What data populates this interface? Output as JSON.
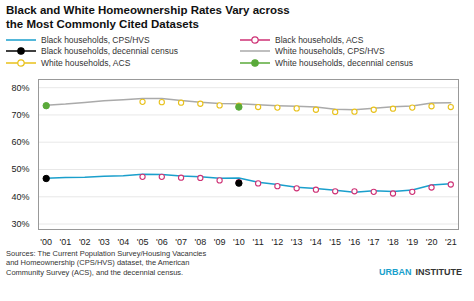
{
  "chart_data": {
    "type": "line",
    "title": "Black and White Homeownership Rates Vary across\nthe Most Commonly Cited Datasets",
    "caption": "Sources: The Current Population Survey/Housing Vacancies\nand Homeownership (CPS/HVS) dataset, the American\nCommunity Survey (ACS), and the decennial census.",
    "annotations": [
      {
        "text": "URBAN",
        "color": "#1a9fcc"
      },
      {
        "text": "INSTITUTE",
        "color": "#333333"
      }
    ],
    "x": [
      2000,
      2001,
      2002,
      2003,
      2004,
      2005,
      2006,
      2007,
      2008,
      2009,
      2010,
      2011,
      2012,
      2013,
      2014,
      2015,
      2016,
      2017,
      2018,
      2019,
      2020,
      2021
    ],
    "xlim": [
      1999.6,
      2021.4
    ],
    "xticks": [
      {
        "value": 2000,
        "label": "'00"
      },
      {
        "value": 2001,
        "label": "'01"
      },
      {
        "value": 2002,
        "label": "'02"
      },
      {
        "value": 2003,
        "label": "'03"
      },
      {
        "value": 2004,
        "label": "'04"
      },
      {
        "value": 2005,
        "label": "'05"
      },
      {
        "value": 2006,
        "label": "'06"
      },
      {
        "value": 2007,
        "label": "'07"
      },
      {
        "value": 2008,
        "label": "'08"
      },
      {
        "value": 2009,
        "label": "'09"
      },
      {
        "value": 2010,
        "label": "'10"
      },
      {
        "value": 2011,
        "label": "'11"
      },
      {
        "value": 2012,
        "label": "'12"
      },
      {
        "value": 2013,
        "label": "'13"
      },
      {
        "value": 2014,
        "label": "'14"
      },
      {
        "value": 2015,
        "label": "'15"
      },
      {
        "value": 2016,
        "label": "'16"
      },
      {
        "value": 2017,
        "label": "'17"
      },
      {
        "value": 2018,
        "label": "'18"
      },
      {
        "value": 2019,
        "label": "'19"
      },
      {
        "value": 2020,
        "label": "'20"
      },
      {
        "value": 2021,
        "label": "'21"
      }
    ],
    "ylim": [
      28,
      83
    ],
    "yticks": [
      {
        "value": 30,
        "label": "30%"
      },
      {
        "value": 40,
        "label": "40%"
      },
      {
        "value": 50,
        "label": "50%"
      },
      {
        "value": 60,
        "label": "60%"
      },
      {
        "value": 70,
        "label": "70%"
      },
      {
        "value": 80,
        "label": "80%"
      }
    ],
    "grid": true,
    "legend": "top",
    "series": [
      {
        "name": "Black households, CPS/HVS",
        "type": "line",
        "color": "#1a9fcc",
        "values": [
          46.8,
          47.1,
          47.2,
          47.5,
          47.7,
          48.3,
          48.2,
          47.6,
          47.3,
          46.8,
          46.9,
          45.3,
          44.5,
          43.5,
          43.0,
          42.4,
          41.7,
          42.2,
          41.9,
          42.5,
          44.3,
          44.8
        ]
      },
      {
        "name": "Black households, ACS",
        "type": "scatter",
        "marker": "open_circle",
        "color": "#ce3175",
        "values": [
          null,
          null,
          null,
          null,
          null,
          47.3,
          47.3,
          47.0,
          46.9,
          46.0,
          45.4,
          44.9,
          43.9,
          43.1,
          42.6,
          42.0,
          42.0,
          41.8,
          41.2,
          41.8,
          43.4,
          44.5
        ]
      },
      {
        "name": "Black households, decennial census",
        "type": "scatter",
        "marker": "filled_circle",
        "color": "#000000",
        "values": [
          46.7,
          null,
          null,
          null,
          null,
          null,
          null,
          null,
          null,
          null,
          45.0,
          null,
          null,
          null,
          null,
          null,
          null,
          null,
          null,
          null,
          null,
          null
        ]
      },
      {
        "name": "White households, CPS/HVS",
        "type": "line",
        "color": "#aaaaaa",
        "values": [
          73.6,
          74.0,
          74.6,
          75.2,
          75.6,
          76.0,
          76.0,
          75.3,
          74.7,
          74.2,
          74.1,
          73.7,
          73.4,
          73.2,
          72.9,
          72.1,
          71.9,
          72.5,
          73.0,
          73.3,
          74.4,
          74.5
        ]
      },
      {
        "name": "White households, ACS",
        "type": "scatter",
        "marker": "open_circle",
        "color": "#e8c11a",
        "values": [
          null,
          null,
          null,
          null,
          null,
          74.8,
          74.7,
          74.5,
          74.1,
          73.5,
          73.4,
          72.9,
          72.7,
          72.4,
          71.9,
          71.1,
          71.2,
          71.9,
          72.3,
          72.7,
          73.2,
          72.9
        ]
      },
      {
        "name": "White households, decennial census",
        "type": "scatter",
        "marker": "filled_circle",
        "color": "#5aaa3a",
        "values": [
          73.4,
          null,
          null,
          null,
          null,
          null,
          null,
          null,
          null,
          null,
          72.9,
          null,
          null,
          null,
          null,
          null,
          null,
          null,
          null,
          null,
          null,
          null
        ]
      }
    ]
  }
}
